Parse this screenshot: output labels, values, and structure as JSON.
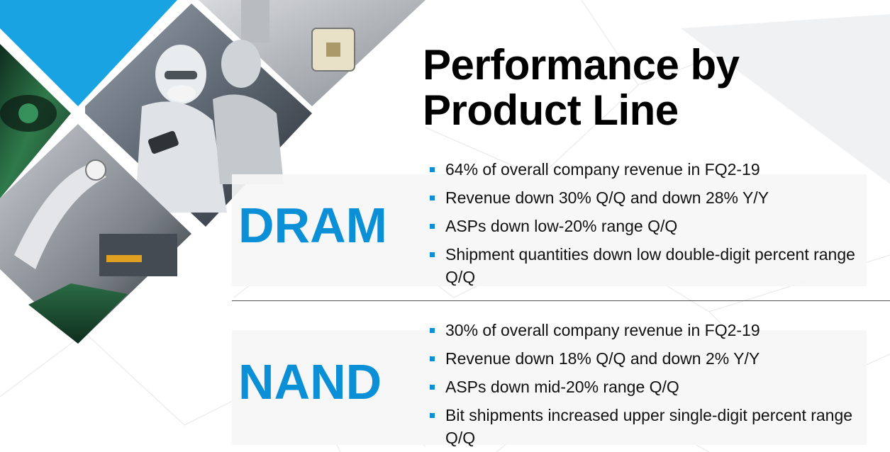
{
  "slide": {
    "title_lines": [
      "Performance by",
      "Product Line"
    ],
    "colors": {
      "accent_blue": "#0b8fd6",
      "title": "#000000",
      "text": "#111111"
    },
    "sections": [
      {
        "label": "DRAM",
        "bullets": [
          "64% of overall company revenue in FQ2-19",
          "Revenue down 30% Q/Q and down 28% Y/Y",
          "ASPs down low-20% range Q/Q",
          "Shipment quantities down low double-digit percent range Q/Q"
        ]
      },
      {
        "label": "NAND",
        "bullets": [
          "30% of overall company revenue in FQ2-19",
          "Revenue down 18% Q/Q and down 2% Y/Y",
          "ASPs down mid-20% range Q/Q",
          "Bit shipments increased upper single-digit percent range Q/Q"
        ]
      }
    ]
  }
}
